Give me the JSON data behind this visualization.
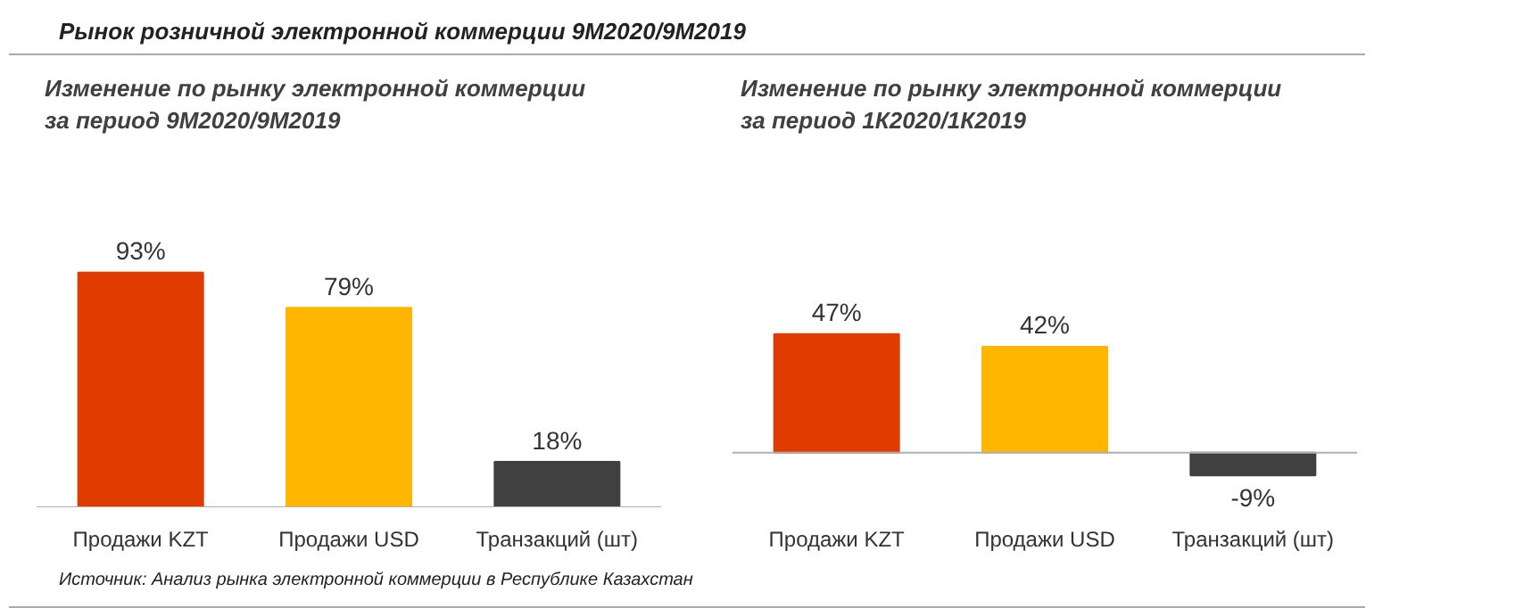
{
  "chart_data": [
    {
      "type": "bar",
      "title": "Рынок розничной электронной коммерции 9М2020/9М2019",
      "subtitle": "Изменение по рынку электронной коммерции\nза период 9М2020/9М2019",
      "categories": [
        "Продажи KZT",
        "Продажи USD",
        "Транзакций (шт)"
      ],
      "values": [
        93,
        79,
        18
      ],
      "value_labels": [
        "93%",
        "79%",
        "18%"
      ],
      "colors": [
        "#e03c00",
        "#ffb600",
        "#404040"
      ],
      "annotations": [
        "Источник: Анализ рынка электронной коммерции в Республике Казахстан"
      ]
    },
    {
      "type": "bar",
      "subtitle": "Изменение по рынку электронной коммерции\nза период 1К2020/1К2019",
      "categories": [
        "Продажи KZT",
        "Продажи USD",
        "Транзакций (шт)"
      ],
      "values": [
        47,
        42,
        -9
      ],
      "value_labels": [
        "47%",
        "42%",
        "-9%"
      ],
      "colors": [
        "#e03c00",
        "#ffb600",
        "#404040"
      ]
    }
  ]
}
